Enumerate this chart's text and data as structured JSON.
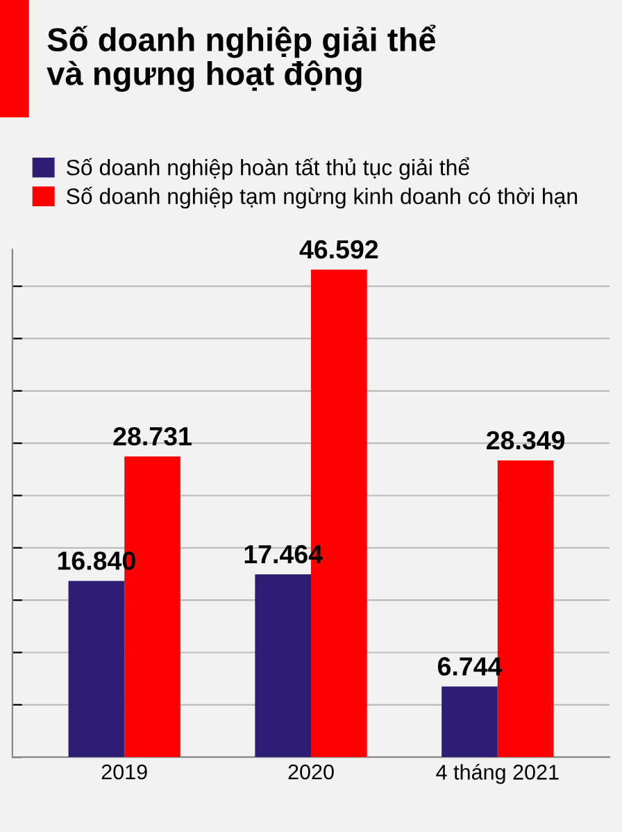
{
  "chart_data": {
    "type": "bar",
    "title": "Số doanh nghiệp giải thể\nvà ngưng hoạt động",
    "categories": [
      "2019",
      "2020",
      "4 tháng 2021"
    ],
    "series": [
      {
        "name": "Số doanh nghiệp hoàn tất thủ tục giải thể",
        "color": "#2e1d72",
        "values": [
          16840,
          17464,
          6744
        ],
        "value_labels": [
          "16.840",
          "17.464",
          "6.744"
        ]
      },
      {
        "name": "Số doanh nghiệp tạm ngừng kinh doanh có thời hạn",
        "color": "#ff0000",
        "values": [
          28731,
          46592,
          28349
        ],
        "value_labels": [
          "28.731",
          "46.592",
          "28.349"
        ]
      }
    ],
    "ylim": [
      0,
      48500
    ],
    "yticks": [
      {
        "value": 0,
        "label": null
      },
      {
        "value": 5000,
        "label": null
      },
      {
        "value": 10000,
        "label": null
      },
      {
        "value": 15000,
        "label": null
      },
      {
        "value": 20000,
        "label": null
      },
      {
        "value": 25000,
        "label": null
      },
      {
        "value": 30000,
        "label": null
      },
      {
        "value": 35000,
        "label": null
      },
      {
        "value": 40000,
        "label": null
      },
      {
        "value": 45000,
        "label": null
      }
    ],
    "grid": "y",
    "legend": "top",
    "tick_labels": "x"
  }
}
